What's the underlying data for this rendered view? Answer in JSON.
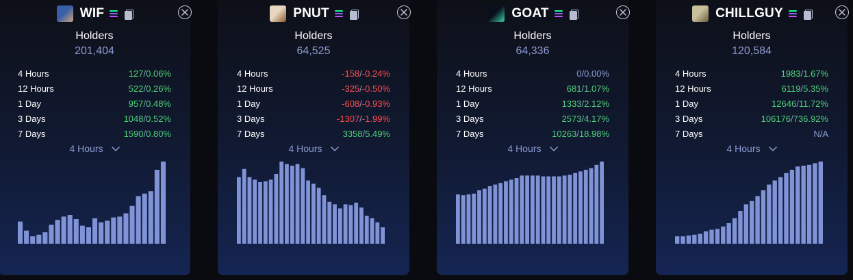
{
  "cards": [
    {
      "symbol": "WIF",
      "holders_label": "Holders",
      "holders_value": "201,404",
      "icon_colors": [
        "#3a5ea8",
        "#c9a37a"
      ],
      "stats": [
        {
          "label": "4 Hours",
          "abs": "127",
          "pct": "0.06%",
          "trend": "pos"
        },
        {
          "label": "12 Hours",
          "abs": "522",
          "pct": "0.26%",
          "trend": "pos"
        },
        {
          "label": "1 Day",
          "abs": "957",
          "pct": "0.48%",
          "trend": "pos"
        },
        {
          "label": "3 Days",
          "abs": "1048",
          "pct": "0.52%",
          "trend": "pos"
        },
        {
          "label": "7 Days",
          "abs": "1590",
          "pct": "0.80%",
          "trend": "pos"
        }
      ],
      "period": "4 Hours",
      "chart_data": {
        "type": "bar",
        "values": [
          27,
          16,
          9,
          11,
          14,
          23,
          29,
          33,
          35,
          30,
          22,
          20,
          31,
          26,
          28,
          32,
          33,
          37,
          46,
          58,
          61,
          64,
          90,
          100
        ]
      }
    },
    {
      "symbol": "PNUT",
      "holders_label": "Holders",
      "holders_value": "64,525",
      "icon_colors": [
        "#e8d6c0",
        "#8a5a2b"
      ],
      "stats": [
        {
          "label": "4 Hours",
          "abs": "-158",
          "pct": "-0.24%",
          "trend": "neg"
        },
        {
          "label": "12 Hours",
          "abs": "-325",
          "pct": "-0.50%",
          "trend": "neg"
        },
        {
          "label": "1 Day",
          "abs": "-608",
          "pct": "-0.93%",
          "trend": "neg"
        },
        {
          "label": "3 Days",
          "abs": "-1307",
          "pct": "-1.99%",
          "trend": "neg"
        },
        {
          "label": "7 Days",
          "abs": "3358",
          "pct": "5.49%",
          "trend": "pos"
        }
      ],
      "period": "4 Hours",
      "chart_data": {
        "type": "bar",
        "values": [
          81,
          91,
          81,
          78,
          75,
          76,
          78,
          85,
          100,
          97,
          95,
          97,
          92,
          77,
          73,
          68,
          59,
          51,
          48,
          43,
          48,
          47,
          50,
          44,
          34,
          31,
          26,
          20
        ]
      }
    },
    {
      "symbol": "GOAT",
      "holders_label": "Holders",
      "holders_value": "64,336",
      "icon_colors": [
        "#0a0f1e",
        "#3cd3a6"
      ],
      "stats": [
        {
          "label": "4 Hours",
          "abs": "0",
          "pct": "0.00%",
          "trend": "neu"
        },
        {
          "label": "12 Hours",
          "abs": "681",
          "pct": "1.07%",
          "trend": "pos"
        },
        {
          "label": "1 Day",
          "abs": "1333",
          "pct": "2.12%",
          "trend": "pos"
        },
        {
          "label": "3 Days",
          "abs": "2573",
          "pct": "4.17%",
          "trend": "pos"
        },
        {
          "label": "7 Days",
          "abs": "10263",
          "pct": "18.98%",
          "trend": "pos"
        }
      ],
      "period": "4 Hours",
      "chart_data": {
        "type": "bar",
        "values": [
          60,
          59,
          60,
          61,
          65,
          67,
          70,
          72,
          74,
          76,
          78,
          80,
          83,
          83,
          83,
          83,
          82,
          82,
          82,
          82,
          83,
          84,
          86,
          88,
          90,
          92,
          96,
          100
        ]
      }
    },
    {
      "symbol": "CHILLGUY",
      "holders_label": "Holders",
      "holders_value": "120,584",
      "icon_colors": [
        "#c7c09b",
        "#6b5d3a"
      ],
      "stats": [
        {
          "label": "4 Hours",
          "abs": "1983",
          "pct": "1.67%",
          "trend": "pos"
        },
        {
          "label": "12 Hours",
          "abs": "6119",
          "pct": "5.35%",
          "trend": "pos"
        },
        {
          "label": "1 Day",
          "abs": "12646",
          "pct": "11.72%",
          "trend": "pos"
        },
        {
          "label": "3 Days",
          "abs": "106176",
          "pct": "736.92%",
          "trend": "pos"
        },
        {
          "label": "7 Days",
          "na": "N/A",
          "trend": "neu"
        }
      ],
      "period": "4 Hours",
      "chart_data": {
        "type": "bar",
        "values": [
          9,
          9,
          10,
          11,
          12,
          15,
          17,
          18,
          21,
          25,
          31,
          40,
          48,
          52,
          58,
          65,
          72,
          77,
          81,
          86,
          90,
          94,
          95,
          96,
          98,
          100
        ]
      }
    }
  ]
}
